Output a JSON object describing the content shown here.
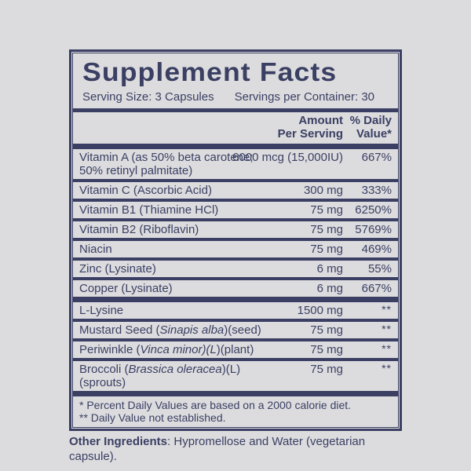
{
  "colors": {
    "navy": "#3a3f63",
    "panel": "#dcdcde"
  },
  "label": {
    "title": "Supplement Facts",
    "serving_size": "Serving Size: 3 Capsules",
    "servings_per_container": "Servings per Container: 30",
    "columns": {
      "amount": "Amount\nPer Serving",
      "daily_value": "% Daily\nValue*"
    }
  },
  "rows": {
    "group1": [
      {
        "name": [
          {
            "t": "Vitamin A (as 50% beta carotene; 50% retinyl palmitate)"
          }
        ],
        "amount": "6000 mcg (15,000IU)",
        "dv": "667%"
      },
      {
        "name": [
          {
            "t": "Vitamin C (Ascorbic Acid)"
          }
        ],
        "amount": "300 mg",
        "dv": "333%"
      },
      {
        "name": [
          {
            "t": "Vitamin B1 (Thiamine HCl)"
          }
        ],
        "amount": "75 mg",
        "dv": "6250%"
      },
      {
        "name": [
          {
            "t": "Vitamin B2 (Riboflavin)"
          }
        ],
        "amount": "75 mg",
        "dv": "5769%"
      },
      {
        "name": [
          {
            "t": "Niacin"
          }
        ],
        "amount": "75 mg",
        "dv": "469%"
      },
      {
        "name": [
          {
            "t": "Zinc (Lysinate)"
          }
        ],
        "amount": "6 mg",
        "dv": "55%"
      },
      {
        "name": [
          {
            "t": "Copper (Lysinate)"
          }
        ],
        "amount": "6 mg",
        "dv": "667%"
      }
    ],
    "group2": [
      {
        "name": [
          {
            "t": "L-Lysine"
          }
        ],
        "amount": "1500 mg",
        "dv": "**"
      },
      {
        "name": [
          {
            "t": "Mustard Seed ("
          },
          {
            "t": "Sinapis alba",
            "i": true
          },
          {
            "t": ")(seed)"
          }
        ],
        "amount": "75 mg",
        "dv": "**"
      },
      {
        "name": [
          {
            "t": "Periwinkle ("
          },
          {
            "t": "Vinca minor)(L",
            "i": true
          },
          {
            "t": ")(plant)"
          }
        ],
        "amount": "75 mg",
        "dv": "**"
      },
      {
        "name": [
          {
            "t": "Broccoli ("
          },
          {
            "t": "Brassica oleracea",
            "i": true
          },
          {
            "t": ")(L)(sprouts)"
          }
        ],
        "amount": "75 mg",
        "dv": "**"
      }
    ]
  },
  "footnotes": [
    "* Percent Daily Values are based on a 2000 calorie diet.",
    "** Daily Value not established."
  ],
  "other_ingredients": {
    "label": "Other Ingredients",
    "text": ": Hypromellose and Water (vegetarian capsule)."
  }
}
